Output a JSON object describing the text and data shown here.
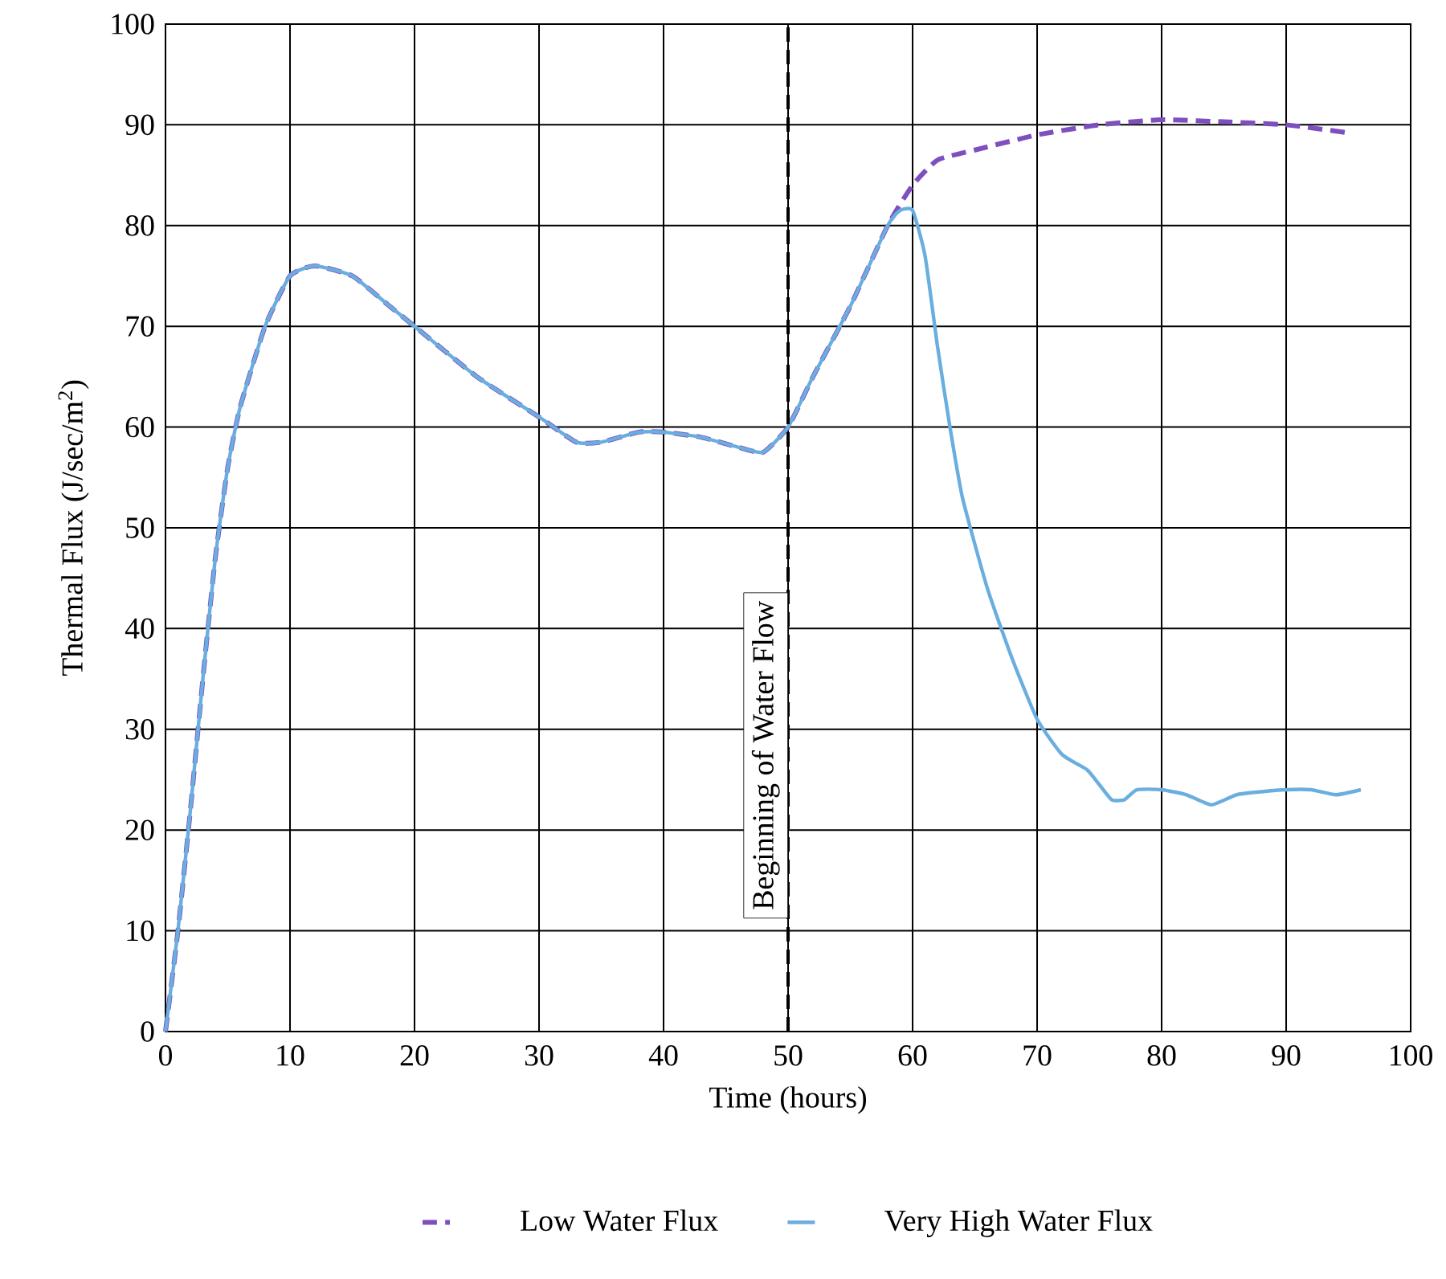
{
  "chart_data": {
    "type": "line",
    "xlabel": "Time (hours)",
    "ylabel": "Thermal Flux (J/sec/m$^{2}$)",
    "xlim": [
      0,
      100
    ],
    "ylim": [
      0,
      100
    ],
    "xticks": [
      0,
      10,
      20,
      30,
      40,
      50,
      60,
      70,
      80,
      90,
      100
    ],
    "yticks": [
      0,
      10,
      20,
      30,
      40,
      50,
      60,
      70,
      80,
      90,
      100
    ],
    "grid": true,
    "legend": "bottom",
    "ref_lines": [
      {
        "axis": "x",
        "value": 50,
        "label": "Beginning of Water Flow",
        "color": "#000000",
        "line_style": "dashed"
      }
    ],
    "series": [
      {
        "name": "Low Water Flux",
        "color": "#7e4fbe",
        "line_style": "dashed",
        "x": [
          0,
          1,
          2,
          3,
          4,
          5,
          6,
          8,
          10,
          12,
          15,
          18,
          20,
          25,
          30,
          33,
          35,
          38,
          40,
          43,
          46,
          48,
          50,
          52,
          55,
          58,
          60,
          62,
          65,
          70,
          75,
          80,
          85,
          90,
          95
        ],
        "values": [
          0,
          10,
          22,
          35,
          47,
          56,
          62,
          70,
          75,
          76,
          75,
          72,
          70,
          65,
          61,
          58.5,
          58.5,
          59.5,
          59.5,
          59,
          58,
          57.5,
          60,
          65,
          72,
          80,
          84,
          86.5,
          87.5,
          89,
          90,
          90.5,
          90.3,
          90,
          89.2
        ]
      },
      {
        "name": "Very High Water Flux",
        "color": "#6aaee0",
        "line_style": "solid",
        "x": [
          0,
          1,
          2,
          3,
          4,
          5,
          6,
          8,
          10,
          12,
          15,
          18,
          20,
          25,
          30,
          33,
          35,
          38,
          40,
          43,
          46,
          48,
          50,
          52,
          55,
          58,
          59,
          60,
          61,
          62,
          63,
          64,
          66,
          68,
          70,
          72,
          74,
          75,
          76,
          77,
          78,
          80,
          82,
          84,
          86,
          88,
          90,
          92,
          94,
          96
        ],
        "values": [
          0,
          10,
          22,
          35,
          47,
          56,
          62,
          70,
          75,
          76,
          75,
          72,
          70,
          65,
          61,
          58.5,
          58.5,
          59.5,
          59.5,
          59,
          58,
          57.5,
          60,
          65,
          72,
          80,
          81.5,
          81.5,
          77,
          68,
          60,
          53,
          44,
          37,
          31,
          27.5,
          26,
          24.5,
          23,
          23,
          24,
          24,
          23.5,
          22.5,
          23.5,
          23.8,
          24,
          24,
          23.5,
          24
        ]
      }
    ]
  }
}
